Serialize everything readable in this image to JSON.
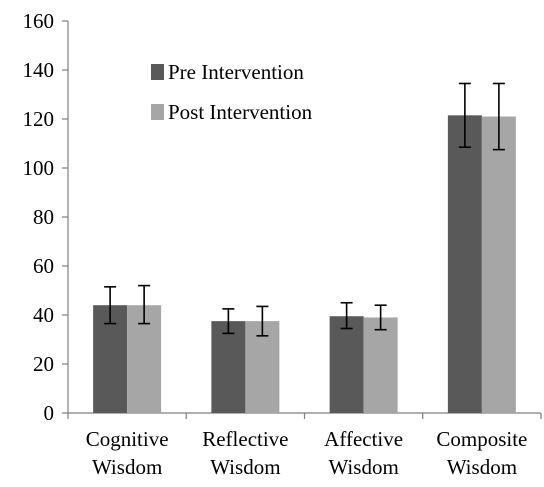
{
  "chart_data": {
    "type": "bar",
    "title": "",
    "xlabel": "",
    "ylabel": "",
    "ylim": [
      0,
      160
    ],
    "yticks": [
      0,
      20,
      40,
      60,
      80,
      100,
      120,
      140,
      160
    ],
    "categories": [
      [
        "Cognitive",
        "Wisdom"
      ],
      [
        "Reflective",
        "Wisdom"
      ],
      [
        "Affective",
        "Wisdom"
      ],
      [
        "Composite",
        "Wisdom"
      ]
    ],
    "series": [
      {
        "name": "Pre Intervention",
        "color": "#595959",
        "values": [
          44,
          37.5,
          39.5,
          121.5
        ],
        "error_low": [
          36.5,
          32.5,
          34.5,
          108.5
        ],
        "error_high": [
          51.5,
          42.5,
          45,
          134.5
        ]
      },
      {
        "name": "Post Intervention",
        "color": "#a6a6a6",
        "values": [
          44,
          37.5,
          39,
          121
        ],
        "error_low": [
          36.5,
          31.5,
          34,
          107.5
        ],
        "error_high": [
          52,
          43.5,
          44,
          134.5
        ]
      }
    ],
    "legend_position": "top-left",
    "grid": false
  }
}
